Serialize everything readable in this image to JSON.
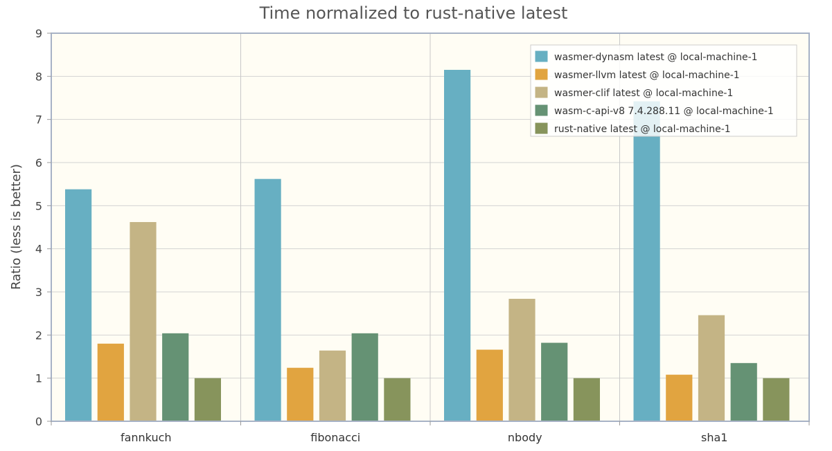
{
  "chart_data": {
    "type": "bar",
    "title": "Time normalized to rust-native latest",
    "xlabel": "",
    "ylabel": "Ratio  (less is better)",
    "ylim": [
      0,
      9
    ],
    "yticks": [
      "0",
      "1",
      "2",
      "3",
      "4",
      "5",
      "6",
      "7",
      "8",
      "9"
    ],
    "categories": [
      "fannkuch",
      "fibonacci",
      "nbody",
      "sha1"
    ],
    "series": [
      {
        "name": "wasmer-dynasm latest @ local-machine-1",
        "color": "#67afc2",
        "values": [
          5.38,
          5.62,
          8.15,
          7.42
        ]
      },
      {
        "name": "wasmer-llvm latest @ local-machine-1",
        "color": "#e1a440",
        "values": [
          1.8,
          1.24,
          1.66,
          1.08
        ]
      },
      {
        "name": "wasmer-clif latest @ local-machine-1",
        "color": "#c4b485",
        "values": [
          4.62,
          1.64,
          2.84,
          2.46
        ]
      },
      {
        "name": "wasm-c-api-v8 7.4.288.11 @ local-machine-1",
        "color": "#659274",
        "values": [
          2.04,
          2.04,
          1.82,
          1.35
        ]
      },
      {
        "name": "rust-native latest @ local-machine-1",
        "color": "#87945c",
        "values": [
          1.0,
          1.0,
          1.0,
          1.0
        ]
      }
    ],
    "grid": true,
    "legend_position": "top-right",
    "plot_background": "#fffdf4",
    "frame_color": "#a7b2c6"
  }
}
